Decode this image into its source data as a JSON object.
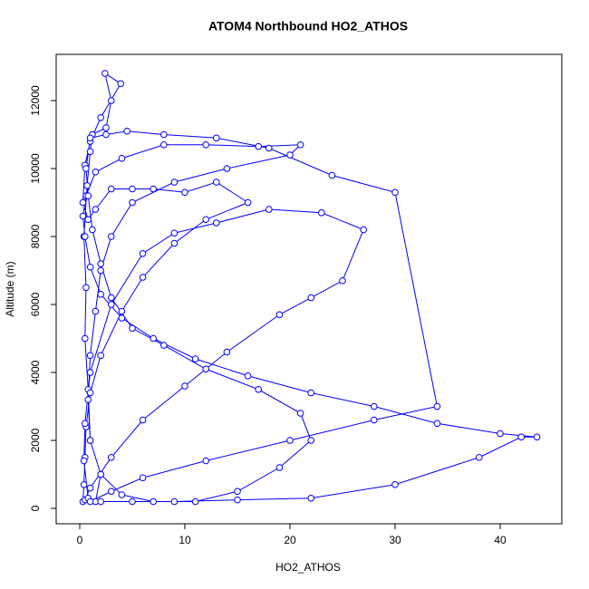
{
  "chart_data": {
    "type": "scatter-line",
    "title": "ATOM4 Northbound HO2_ATHOS",
    "x_label": "HO2_ATHOS",
    "y_label": "Altitude (m)",
    "color": "#0000ff",
    "x": [
      1.5,
      2,
      1,
      0.8,
      0.5,
      0.6,
      0.4,
      0.7,
      1,
      1.2,
      2.5,
      3,
      2.4,
      3.9,
      2,
      1,
      0.5,
      0.3,
      0.8,
      1.5,
      3,
      5,
      7,
      10,
      13,
      16,
      12,
      9,
      6,
      4,
      2,
      1,
      0.6,
      0.5,
      0.4,
      0.3,
      0.5,
      1,
      3,
      6,
      10,
      14,
      19,
      22,
      25,
      27,
      23,
      18,
      13,
      9,
      6,
      3,
      1,
      0.5,
      0.4,
      0.8,
      2,
      5,
      9,
      15,
      22,
      30,
      38,
      42,
      43.5,
      40,
      34,
      28,
      22,
      16,
      11,
      7,
      4,
      2,
      1,
      0.5,
      0.3,
      0.6,
      1.5,
      4,
      8,
      12,
      17,
      21,
      20,
      14,
      9,
      5,
      3,
      2,
      1.5,
      1,
      0.8,
      1,
      2,
      4,
      7,
      11,
      15,
      19,
      22,
      21,
      17,
      12,
      8,
      5,
      3,
      2,
      1.2,
      0.8,
      0.6,
      1,
      2.5,
      4.5,
      8,
      13,
      18,
      24,
      30,
      34,
      28,
      20,
      12,
      6,
      3,
      1
    ],
    "values": [
      200,
      1000,
      2000,
      3500,
      5000,
      6500,
      8000,
      9500,
      10500,
      11000,
      11200,
      12000,
      12800,
      12500,
      11500,
      10800,
      10100,
      9000,
      8500,
      8800,
      9400,
      9400,
      9400,
      9300,
      9600,
      9000,
      8500,
      7800,
      6800,
      5800,
      4500,
      3400,
      2400,
      1500,
      700,
      200,
      250,
      600,
      1500,
      2600,
      3600,
      4600,
      5700,
      6200,
      6700,
      8200,
      8700,
      8800,
      8400,
      8100,
      7500,
      6000,
      4000,
      2500,
      1400,
      300,
      200,
      200,
      200,
      250,
      300,
      700,
      1500,
      2100,
      2100,
      2200,
      2500,
      3000,
      3400,
      3900,
      4400,
      5000,
      5600,
      6300,
      7100,
      8000,
      8600,
      9200,
      9900,
      10300,
      10700,
      10700,
      10650,
      10700,
      10400,
      10000,
      9600,
      9000,
      8000,
      7000,
      5800,
      4500,
      3200,
      2000,
      1000,
      400,
      200,
      200,
      500,
      1200,
      2000,
      2800,
      3500,
      4100,
      4800,
      5300,
      6200,
      7200,
      8200,
      9200,
      10000,
      10900,
      11000,
      11100,
      11000,
      10900,
      10600,
      9800,
      9300,
      3000,
      2600,
      2000,
      1400,
      900,
      500,
      200
    ],
    "xlim": [
      -2.24,
      45.86
    ],
    "ylim": [
      -453,
      13360
    ],
    "xticks": [
      0,
      10,
      20,
      30,
      40
    ],
    "yticks": [
      0,
      2000,
      4000,
      6000,
      8000,
      10000,
      12000
    ]
  }
}
